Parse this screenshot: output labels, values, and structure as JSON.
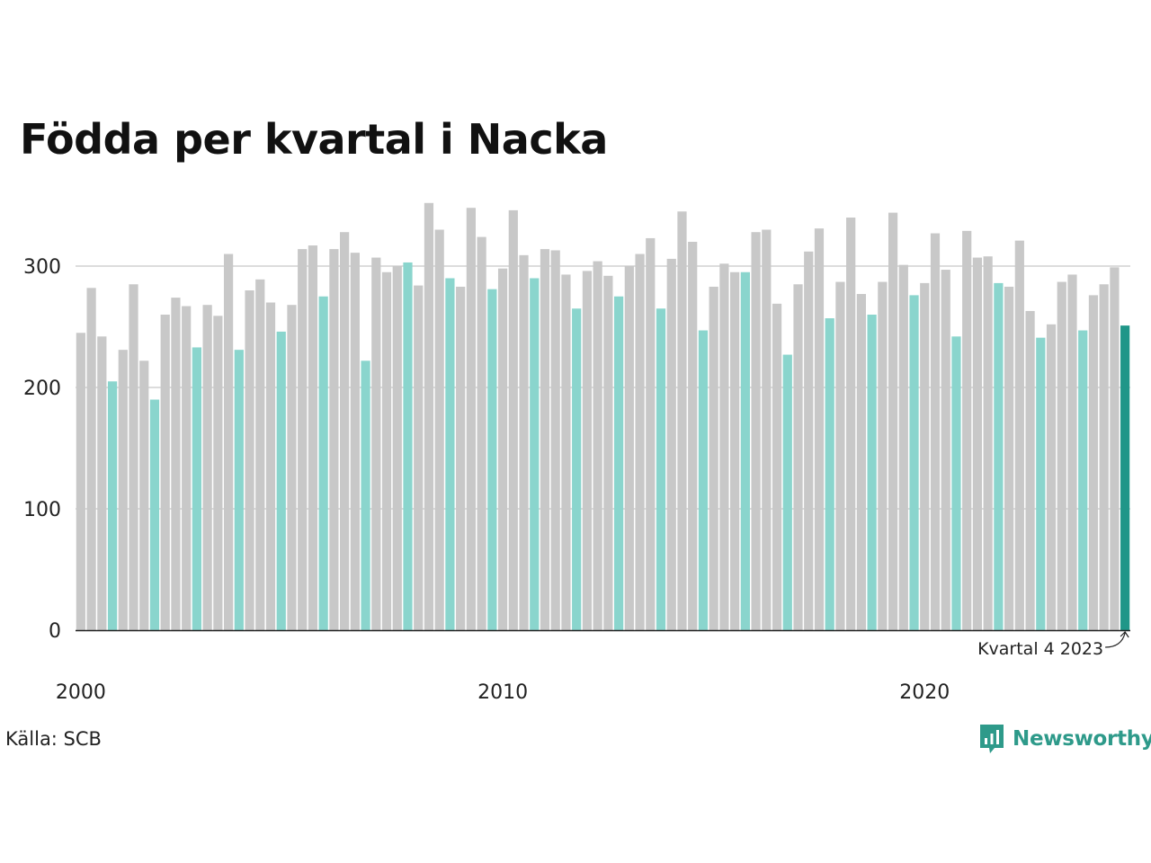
{
  "chart_data": {
    "type": "bar",
    "title": "Födda per kvartal i Nacka",
    "xlabel": "",
    "ylabel": "",
    "x_tick_labels": [
      "2000",
      "2010",
      "2020"
    ],
    "y_ticks": [
      0,
      100,
      200,
      300
    ],
    "ylim": [
      0,
      360
    ],
    "grid": true,
    "start_year": 2000,
    "values": [
      245,
      282,
      242,
      205,
      231,
      285,
      222,
      190,
      260,
      274,
      267,
      233,
      268,
      259,
      310,
      231,
      280,
      289,
      270,
      246,
      268,
      314,
      317,
      275,
      314,
      328,
      311,
      222,
      307,
      295,
      300,
      303,
      284,
      352,
      330,
      290,
      283,
      348,
      324,
      281,
      298,
      346,
      309,
      290,
      314,
      313,
      293,
      265,
      296,
      304,
      292,
      275,
      300,
      310,
      323,
      265,
      306,
      345,
      320,
      247,
      283,
      302,
      295,
      295,
      328,
      330,
      269,
      227,
      285,
      312,
      331,
      257,
      287,
      340,
      277,
      260,
      287,
      344,
      301,
      276,
      286,
      327,
      297,
      242,
      329,
      307,
      308,
      286,
      283,
      321,
      263,
      241,
      252,
      287,
      293,
      247,
      276,
      285,
      299,
      251
    ],
    "annotation": "Kvartal 4 2023",
    "colors": {
      "default": "#c8c8c8",
      "quarter4": "#8ad5cd",
      "latest": "#1f9688",
      "gridline": "#dcdcdc",
      "axis": "#222222"
    }
  },
  "source": "Källa: SCB",
  "logo": {
    "text": "Newsworthy",
    "icon": "newsworthy-logo-icon",
    "color": "#2e9a8a"
  }
}
